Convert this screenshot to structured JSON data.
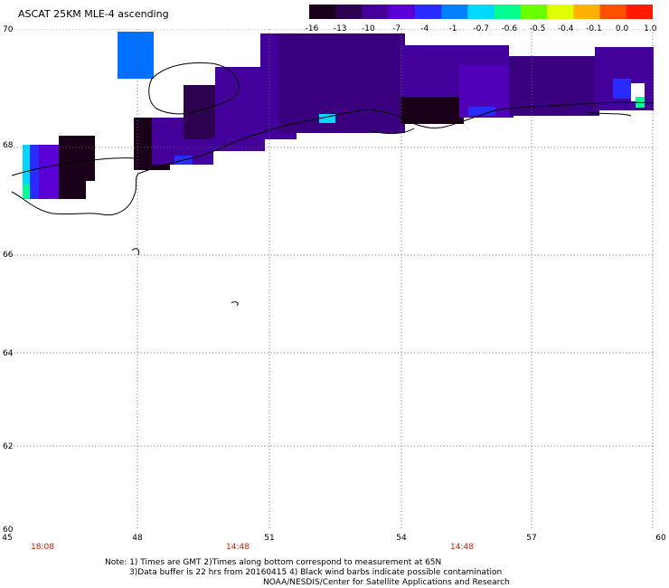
{
  "title": "ASCAT 25KM MLE-4 ascending",
  "colorbar": {
    "labels": [
      "-16",
      "-13",
      "-10",
      "-7",
      "-4",
      "-1",
      "-0.7",
      "-0.6",
      "-0.5",
      "-0.4",
      "-0.1",
      "0.0",
      "1.0"
    ],
    "colors": [
      "#1a0019",
      "#2d0050",
      "#44009a",
      "#5a00d6",
      "#2a2cff",
      "#0080ff",
      "#00d8ff",
      "#00ff90",
      "#6aff00",
      "#e0ff00",
      "#ffb000",
      "#ff5000",
      "#ff1a00"
    ]
  },
  "map": {
    "lat_labels": [
      "70",
      "68",
      "66",
      "64",
      "62",
      "60"
    ],
    "lon_labels": [
      "45",
      "48",
      "51",
      "54",
      "57",
      "60"
    ],
    "time_labels": [
      "18:08",
      "14:48",
      "14:48"
    ]
  },
  "notes": {
    "line1": "Note: 1) Times are GMT 2)Times along bottom correspond to measurement at 65N",
    "line2": "3)Data buffer is 22 hrs from 20160415 4) Black wind barbs indicate possible contamination",
    "line3": "NOAA/NESDIS/Center for Satellite Applications and Research"
  }
}
